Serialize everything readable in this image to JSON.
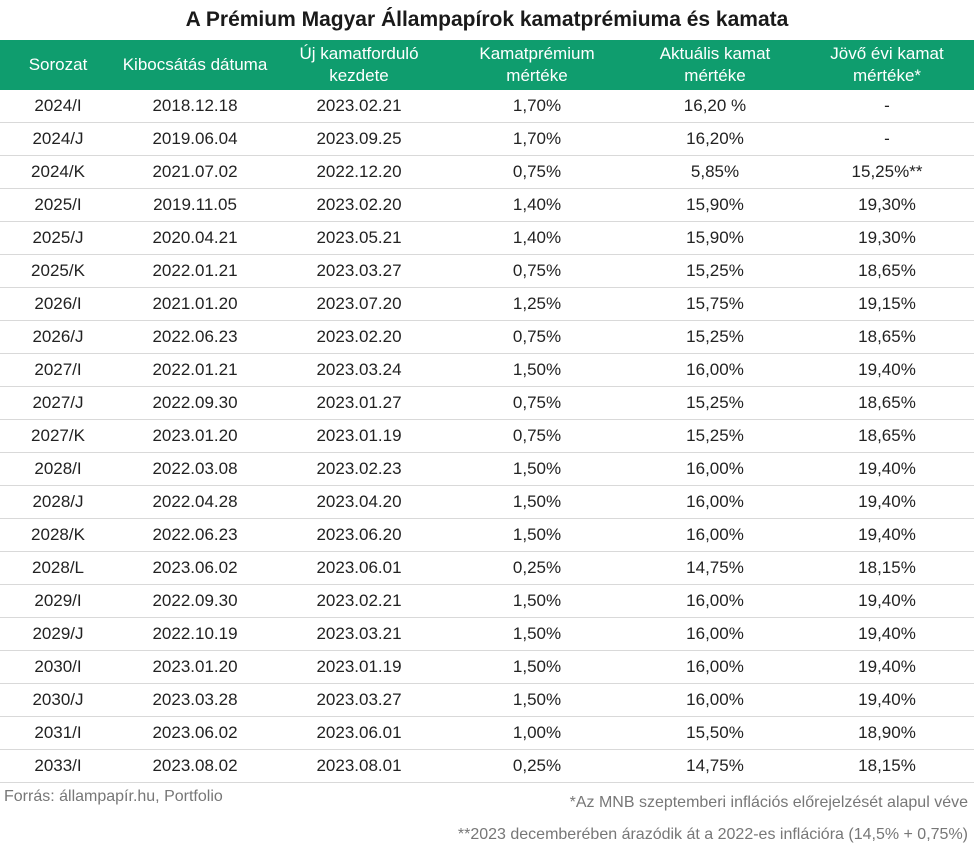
{
  "chart_data": {
    "type": "table",
    "title": "A Prémium Magyar Állampapírok kamatprémiuma és kamata",
    "columns": [
      "Sorozat",
      "Kibocsátás dátuma",
      "Új kamatforduló kezdete",
      "Kamatprémium mértéke",
      "Aktuális kamat mértéke",
      "Jövő évi kamat mértéke*"
    ],
    "rows": [
      [
        "2024/I",
        "2018.12.18",
        "2023.02.21",
        "1,70%",
        "16,20 %",
        "-"
      ],
      [
        "2024/J",
        "2019.06.04",
        "2023.09.25",
        "1,70%",
        "16,20%",
        "-"
      ],
      [
        "2024/K",
        "2021.07.02",
        "2022.12.20",
        "0,75%",
        "5,85%",
        "15,25%**"
      ],
      [
        "2025/I",
        "2019.11.05",
        "2023.02.20",
        "1,40%",
        "15,90%",
        "19,30%"
      ],
      [
        "2025/J",
        "2020.04.21",
        "2023.05.21",
        "1,40%",
        "15,90%",
        "19,30%"
      ],
      [
        "2025/K",
        "2022.01.21",
        "2023.03.27",
        "0,75%",
        "15,25%",
        "18,65%"
      ],
      [
        "2026/I",
        "2021.01.20",
        "2023.07.20",
        "1,25%",
        "15,75%",
        "19,15%"
      ],
      [
        "2026/J",
        "2022.06.23",
        "2023.02.20",
        "0,75%",
        "15,25%",
        "18,65%"
      ],
      [
        "2027/I",
        "2022.01.21",
        "2023.03.24",
        "1,50%",
        "16,00%",
        "19,40%"
      ],
      [
        "2027/J",
        "2022.09.30",
        "2023.01.27",
        "0,75%",
        "15,25%",
        "18,65%"
      ],
      [
        "2027/K",
        "2023.01.20",
        "2023.01.19",
        "0,75%",
        "15,25%",
        "18,65%"
      ],
      [
        "2028/I",
        "2022.03.08",
        "2023.02.23",
        "1,50%",
        "16,00%",
        "19,40%"
      ],
      [
        "2028/J",
        "2022.04.28",
        "2023.04.20",
        "1,50%",
        "16,00%",
        "19,40%"
      ],
      [
        "2028/K",
        "2022.06.23",
        "2023.06.20",
        "1,50%",
        "16,00%",
        "19,40%"
      ],
      [
        "2028/L",
        "2023.06.02",
        "2023.06.01",
        "0,25%",
        "14,75%",
        "18,15%"
      ],
      [
        "2029/I",
        "2022.09.30",
        "2023.02.21",
        "1,50%",
        "16,00%",
        "19,40%"
      ],
      [
        "2029/J",
        "2022.10.19",
        "2023.03.21",
        "1,50%",
        "16,00%",
        "19,40%"
      ],
      [
        "2030/I",
        "2023.01.20",
        "2023.01.19",
        "1,50%",
        "16,00%",
        "19,40%"
      ],
      [
        "2030/J",
        "2023.03.28",
        "2023.03.27",
        "1,50%",
        "16,00%",
        "19,40%"
      ],
      [
        "2031/I",
        "2023.06.02",
        "2023.06.01",
        "1,00%",
        "15,50%",
        "18,90%"
      ],
      [
        "2033/I",
        "2023.08.02",
        "2023.08.01",
        "0,25%",
        "14,75%",
        "18,15%"
      ]
    ],
    "source": "Forrás: állampapír.hu, Portfolio",
    "footnotes": [
      "*Az MNB szeptemberi inflációs előrejelzését alapul véve",
      "**2023 decemberében árazódik át a 2022-es inflációra (14,5% + 0,75%)"
    ],
    "header_color": "#0f9d6e"
  }
}
